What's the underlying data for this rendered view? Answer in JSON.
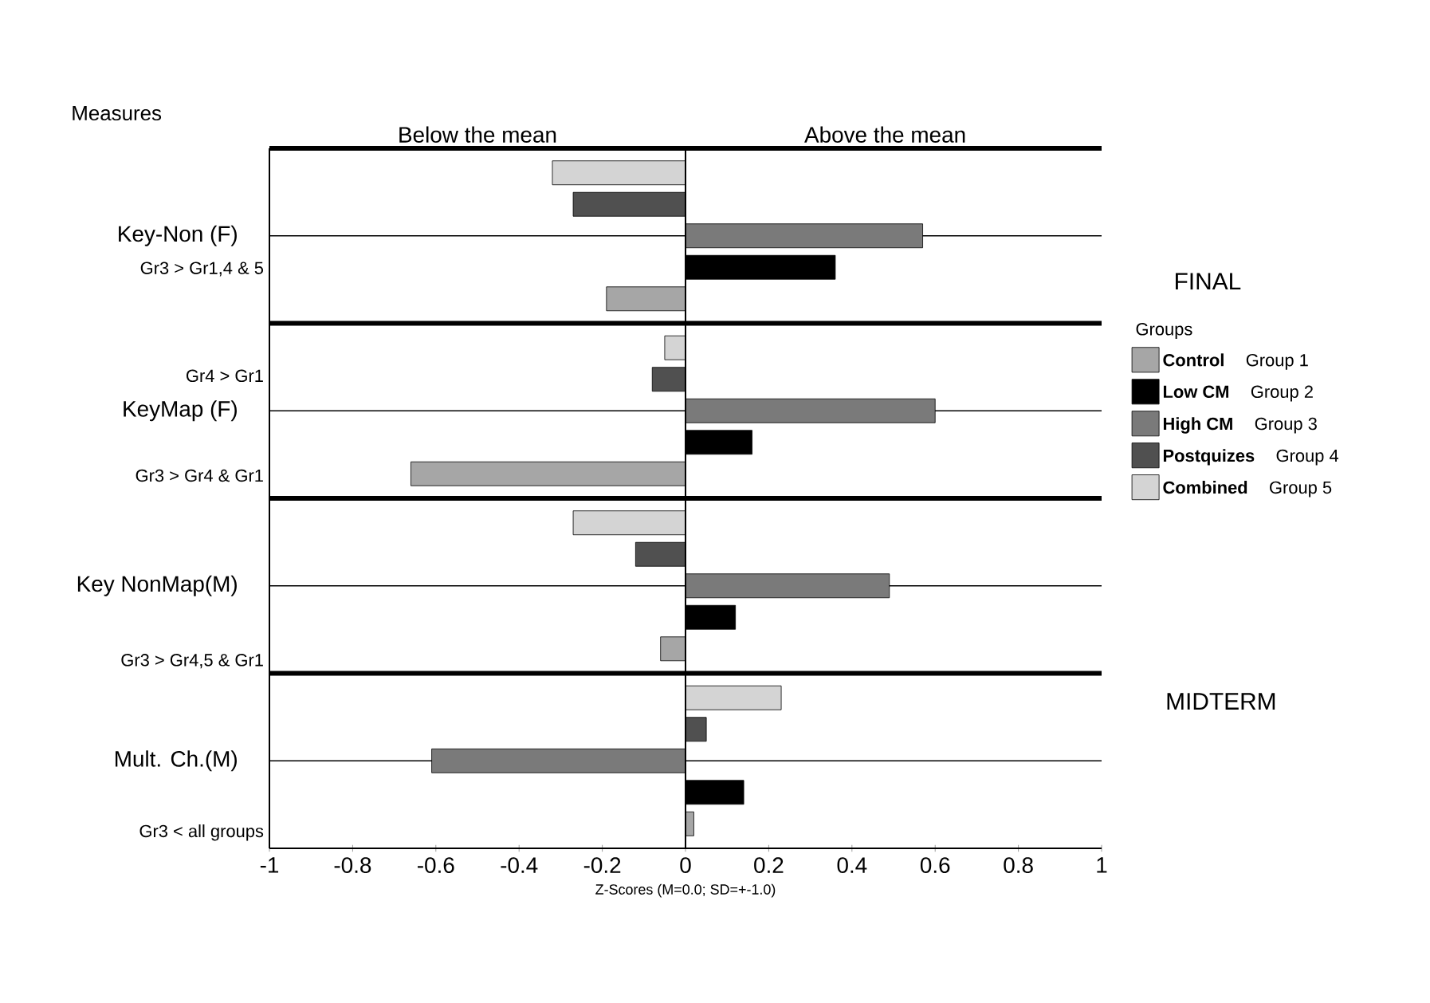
{
  "chart_data": {
    "type": "bar",
    "orientation": "horizontal",
    "ylabel": "Measures",
    "xlabel": "Z-Scores (M=0.0; SD=+-1.0)",
    "legend_title": "Groups",
    "categories": [
      "Key-Non (F)",
      "KeyMap (F)",
      "Key NonMap(M)",
      "Mult. Ch.(M)"
    ],
    "series": [
      {
        "name": "Control",
        "color": "#a6a6a6",
        "values": [
          -0.19,
          -0.66,
          -0.06,
          0.02
        ]
      },
      {
        "name": "Low CM",
        "color": "#000000",
        "values": [
          0.36,
          0.16,
          0.12,
          0.14
        ]
      },
      {
        "name": "High CM",
        "color": "#7a7a7a",
        "values": [
          0.57,
          0.6,
          0.49,
          -0.61
        ]
      },
      {
        "name": "Postquizes",
        "color": "#505050",
        "values": [
          -0.27,
          -0.08,
          -0.12,
          0.05
        ]
      },
      {
        "name": "Combined",
        "color": "#d4d4d4",
        "values": [
          -0.32,
          -0.05,
          -0.27,
          0.23
        ]
      }
    ],
    "xlim": [
      -1,
      1
    ],
    "xticks": [
      -1,
      -0.8,
      -0.6,
      -0.4,
      -0.2,
      0,
      0.2,
      0.4,
      0.6,
      0.8,
      1
    ],
    "grid": "y",
    "legend": "right",
    "ref_lines": [
      {
        "axis": "x",
        "value": 0
      }
    ],
    "annotations": [
      "Gr3 > Gr1,4 & 5",
      "Gr4 > Gr1",
      "Gr3 > Gr4 & Gr1",
      "Gr3 > Gr4,5 & Gr1",
      "Gr3 < all groups",
      "Below the mean",
      "Above the mean",
      "FINAL",
      "MIDTERM",
      "Group 1",
      "Group 2",
      "Group 3",
      "Group 4",
      "Group 5"
    ]
  }
}
